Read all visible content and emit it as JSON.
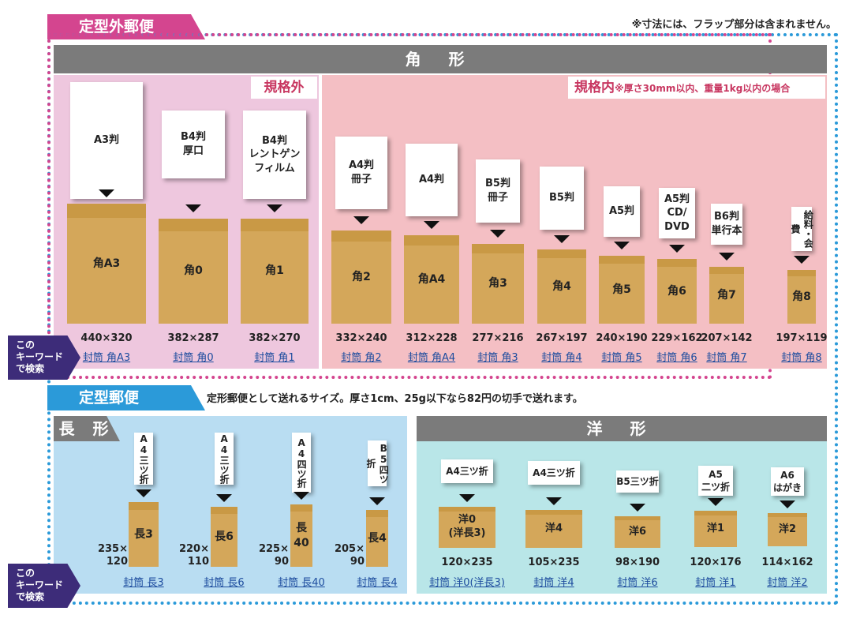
{
  "note": "※寸法には、フラップ部分は含まれません。",
  "sections": {
    "outer": {
      "title": "定型外郵便"
    },
    "inner": {
      "title": "定型郵便",
      "description": "定形郵便として送れるサイズ。厚さ1cm、25g以下なら82円の切手で送れます。"
    }
  },
  "kaku": {
    "band": "角 形",
    "out_label": "規格外",
    "in_label": "規格内",
    "in_note": "※厚さ30mm以内、重量1kg以内の場合",
    "items": [
      {
        "paper": "A3判",
        "env": "角A3",
        "size": "440×320",
        "link": "封筒 角A3"
      },
      {
        "paper": "B4判\n厚口",
        "env": "角0",
        "size": "382×287",
        "link": "封筒 角0"
      },
      {
        "paper": "B4判\nレントゲン\nフィルム",
        "env": "角1",
        "size": "382×270",
        "link": "封筒 角1"
      },
      {
        "paper": "A4判\n冊子",
        "env": "角2",
        "size": "332×240",
        "link": "封筒 角2"
      },
      {
        "paper": "A4判",
        "env": "角A4",
        "size": "312×228",
        "link": "封筒 角A4"
      },
      {
        "paper": "B5判\n冊子",
        "env": "角3",
        "size": "277×216",
        "link": "封筒 角3"
      },
      {
        "paper": "B5判",
        "env": "角4",
        "size": "267×197",
        "link": "封筒 角4"
      },
      {
        "paper": "A5判",
        "env": "角5",
        "size": "240×190",
        "link": "封筒 角5"
      },
      {
        "paper": "A5判\nCD/\nDVD",
        "env": "角6",
        "size": "229×162",
        "link": "封筒 角6"
      },
      {
        "paper": "B6判\n単行本",
        "env": "角7",
        "size": "207×142",
        "link": "封筒 角7"
      },
      {
        "paper": "給料・会費",
        "env": "角8",
        "size": "197×119",
        "link": "封筒 角8"
      }
    ]
  },
  "naga": {
    "band": "長 形",
    "items": [
      {
        "paper": "A4三ツ折",
        "env": "長3",
        "size": "235×\n120",
        "link": "封筒 長3"
      },
      {
        "paper": "A4三ツ折",
        "env": "長6",
        "size": "220×\n110",
        "link": "封筒 長6"
      },
      {
        "paper": "A4四ツ折",
        "env": "長40",
        "size": "225×\n90",
        "link": "封筒 長40"
      },
      {
        "paper": "B5四ツ折",
        "env": "長4",
        "size": "205×\n90",
        "link": "封筒 長4"
      }
    ]
  },
  "you": {
    "band": "洋 形",
    "items": [
      {
        "paper": "A4三ツ折",
        "env": "洋0\n(洋長3)",
        "size": "120×235",
        "link": "封筒 洋0(洋長3)"
      },
      {
        "paper": "A4三ツ折",
        "env": "洋4",
        "size": "105×235",
        "link": "封筒 洋4"
      },
      {
        "paper": "B5三ツ折",
        "env": "洋6",
        "size": "98×190",
        "link": "封筒 洋6"
      },
      {
        "paper": "A5\n二ツ折",
        "env": "洋1",
        "size": "120×176",
        "link": "封筒 洋1"
      },
      {
        "paper": "A6\nはがき",
        "env": "洋2",
        "size": "114×162",
        "link": "封筒 洋2"
      }
    ]
  },
  "keyword_label": "このキーワードで検索",
  "keyword_lines": "この\nキーワード\nで検索",
  "colors": {
    "pink": "#d4458f",
    "blue": "#2b9ad9",
    "envelope": "#d4a75a",
    "band": "#7b7b7b",
    "keyword": "#3d2c79"
  }
}
